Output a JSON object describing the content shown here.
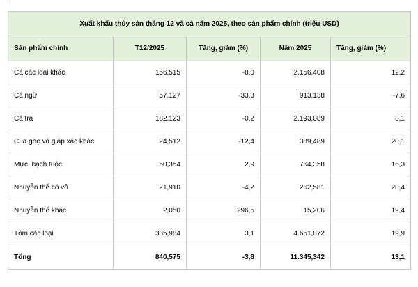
{
  "table": {
    "title": "Xuất khẩu thủy sản tháng 12 và cả năm 2025, theo sản phẩm chính (triệu USD)",
    "headers": [
      "Sản phẩm chính",
      "T12/2025",
      "Tăng, giảm (%)",
      "Năm 2025",
      "Tăng, giảm (%)"
    ],
    "rows": [
      [
        "Cá các loại khác",
        "156,515",
        "-8,0",
        "2.156,408",
        "12,2"
      ],
      [
        "Cá ngừ",
        "57,127",
        "-33,3",
        "913,138",
        "-7,6"
      ],
      [
        "Cá tra",
        "182,123",
        "-0,2",
        "2.193,089",
        "8,1"
      ],
      [
        "Cua ghẹ và giáp xác khác",
        "24,512",
        "-12,4",
        "389,489",
        "20,1"
      ],
      [
        "Mực, bạch tuộc",
        "60,354",
        "2,9",
        "764,358",
        "16,3"
      ],
      [
        "Nhuyễn thể có vỏ",
        "21,910",
        "-4,2",
        "262,581",
        "20,4"
      ],
      [
        "Nhuyễn thể khác",
        "2,050",
        "296,5",
        "15,206",
        "19,4"
      ],
      [
        "Tôm các loại",
        "335,984",
        "3,1",
        "4.651,072",
        "19,9"
      ]
    ],
    "total": [
      "Tổng",
      "840,575",
      "-3,8",
      "11.345,342",
      "13,1"
    ]
  }
}
